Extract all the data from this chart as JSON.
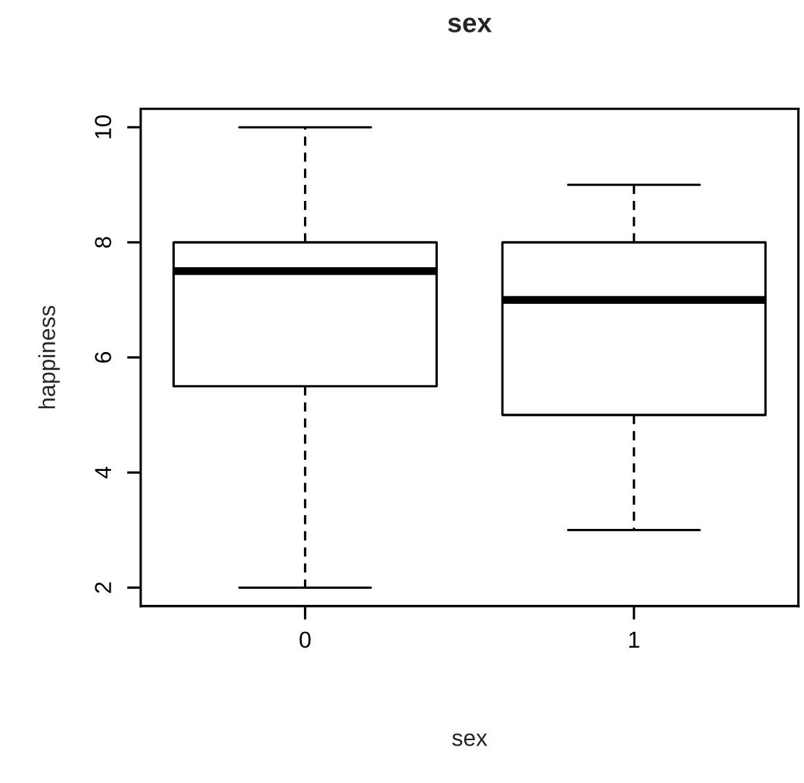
{
  "chart_data": {
    "type": "box",
    "title": "sex",
    "xlabel": "sex",
    "ylabel": "happiness",
    "categories": [
      "0",
      "1"
    ],
    "boxes": [
      {
        "low": 2,
        "q1": 5.5,
        "median": 7.5,
        "q3": 8,
        "high": 10
      },
      {
        "low": 3,
        "q1": 5,
        "median": 7,
        "q3": 8,
        "high": 9
      }
    ],
    "ylim": [
      1.68,
      10.32
    ],
    "yticks": [
      2,
      4,
      6,
      8,
      10
    ],
    "grid": false,
    "legend": false
  }
}
